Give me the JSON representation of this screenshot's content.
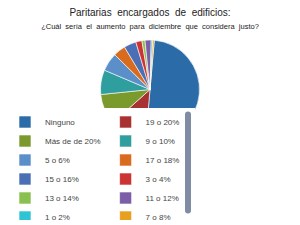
{
  "chart_data": {
    "type": "pie",
    "title": "Paritarias  encargados  de  edificios:",
    "subtitle": "¿Cuál  sería  el  aumento  para  diciembre  que  considera  justo?",
    "categories": [
      "Ninguno",
      "19 o 20%",
      "Más de de 20%",
      "9 o 10%",
      "5 o 6%",
      "17 o 18%",
      "15 o 16%",
      "3 o 4%",
      "13 o 14%",
      "11 o 12%",
      "1 o 2%",
      "7 o 8%"
    ],
    "values": [
      50,
      12,
      10,
      8,
      6,
      4,
      4,
      2,
      1,
      2,
      0.5,
      0.5
    ],
    "colors": [
      "#2b6ca8",
      "#a83232",
      "#7a9a2e",
      "#2e9e9e",
      "#5b8fc9",
      "#d96b1e",
      "#4b6fb5",
      "#cc3333",
      "#89c050",
      "#7b5ea7",
      "#2ec4d4",
      "#e8a020"
    ],
    "legend": "bottom"
  }
}
